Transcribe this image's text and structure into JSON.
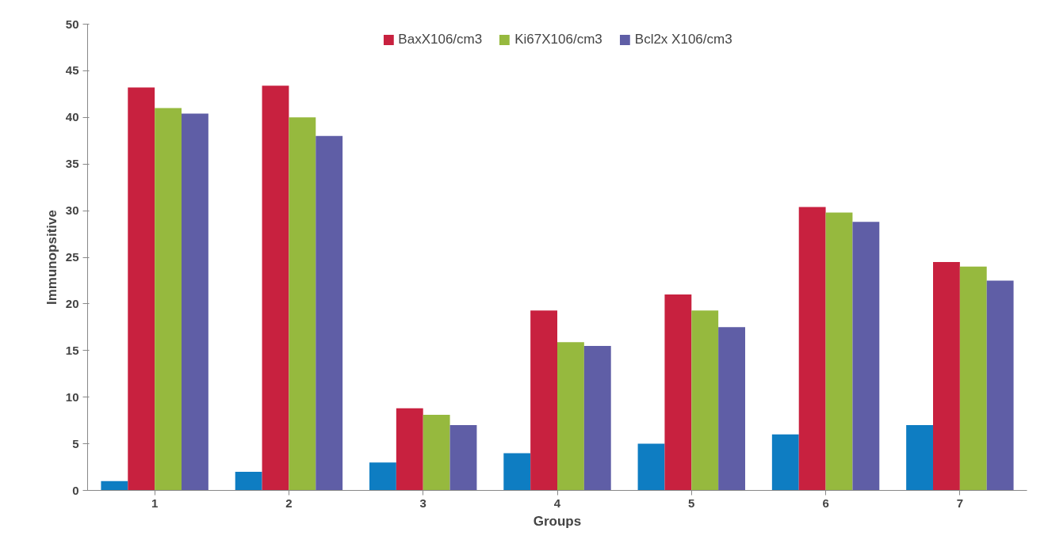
{
  "chart_data": {
    "type": "bar",
    "xlabel": "Groups",
    "ylabel": "Immunopsitive",
    "categories": [
      "1",
      "2",
      "3",
      "4",
      "5",
      "6",
      "7"
    ],
    "series": [
      {
        "color": "#0e7dc2",
        "values": [
          1,
          2,
          3,
          4,
          5,
          6,
          7
        ]
      },
      {
        "name": "BaxX106/cm3",
        "color": "#c8213f",
        "values": [
          43.2,
          43.4,
          8.8,
          19.3,
          21.0,
          30.4,
          24.5
        ]
      },
      {
        "name": "Ki67X106/cm3",
        "color": "#96b93e",
        "values": [
          41.0,
          40.0,
          8.1,
          15.9,
          19.3,
          29.8,
          24.0
        ]
      },
      {
        "name": "Bcl2x X106/cm3",
        "color": "#5f5ea6",
        "values": [
          40.4,
          38.0,
          7.0,
          15.5,
          17.5,
          28.8,
          22.5
        ]
      }
    ],
    "ylim": [
      0,
      50
    ],
    "yticks": [
      0,
      5,
      10,
      15,
      20,
      25,
      30,
      35,
      40,
      45,
      50
    ],
    "grid": false,
    "legend": "top"
  }
}
